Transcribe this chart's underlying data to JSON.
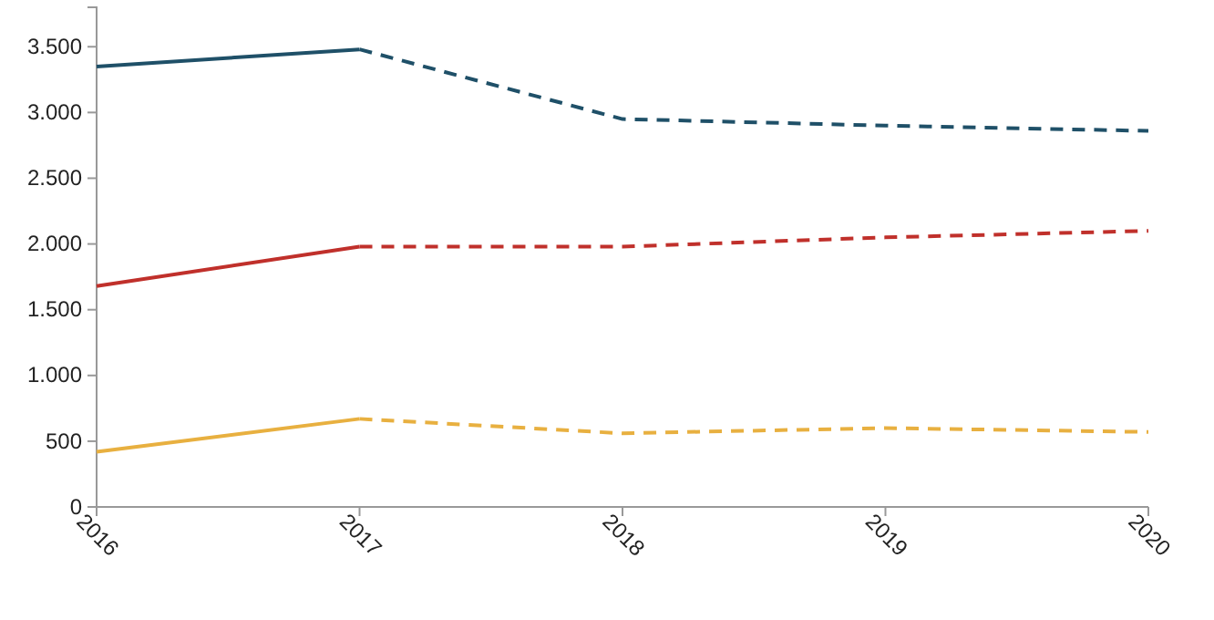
{
  "chart_data": {
    "type": "line",
    "categories": [
      "2016",
      "2017",
      "2018",
      "2019",
      "2020"
    ],
    "ylim": [
      0,
      3800
    ],
    "yticks": [
      0,
      {
        "value": 500,
        "label": "500"
      },
      {
        "value": 1000,
        "label": "1.000"
      },
      {
        "value": 1500,
        "label": "1.500"
      },
      {
        "value": 2000,
        "label": "2.000"
      },
      {
        "value": 2500,
        "label": "2.500"
      },
      {
        "value": 3000,
        "label": "3.000"
      },
      {
        "value": 3500,
        "label": "3.500"
      }
    ],
    "grid": false,
    "marker": "none",
    "series": [
      {
        "color": "#1f5068",
        "line_style": "solid",
        "values": [
          3350,
          3480,
          null,
          null,
          null
        ]
      },
      {
        "color": "#1f5068",
        "line_style": "dashed",
        "values": [
          null,
          3480,
          2950,
          2900,
          2860
        ]
      },
      {
        "color": "#c0302b",
        "line_style": "solid",
        "values": [
          1680,
          1980,
          null,
          null,
          null
        ]
      },
      {
        "color": "#c0302b",
        "line_style": "dashed",
        "values": [
          null,
          1980,
          1980,
          2050,
          2100
        ]
      },
      {
        "color": "#e8b040",
        "line_style": "solid",
        "values": [
          420,
          670,
          null,
          null,
          null
        ]
      },
      {
        "color": "#e8b040",
        "line_style": "dashed",
        "values": [
          null,
          670,
          560,
          600,
          570
        ]
      }
    ]
  }
}
